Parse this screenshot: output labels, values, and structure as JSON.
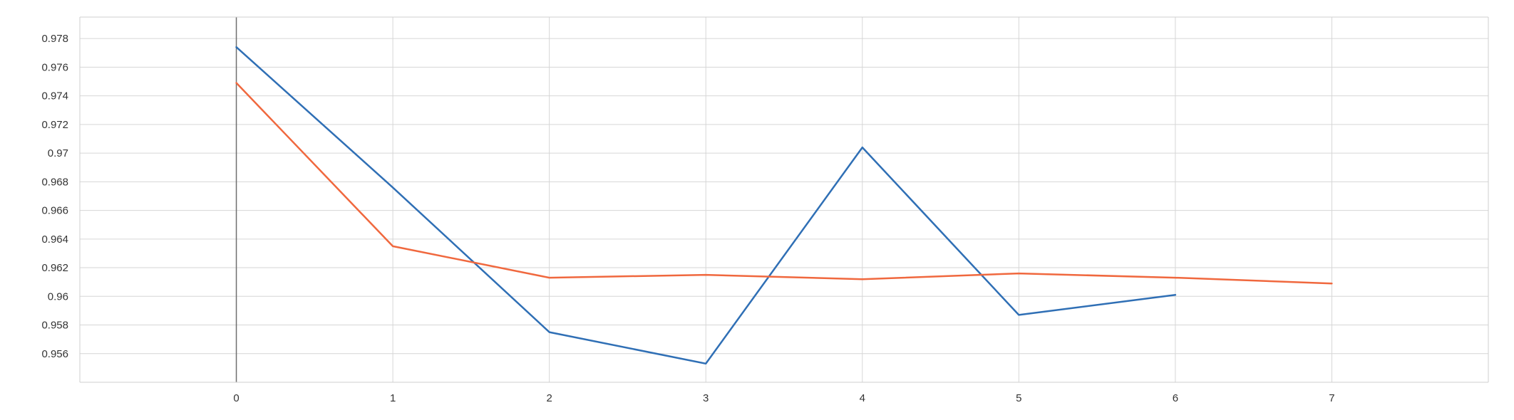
{
  "chart_data": {
    "type": "line",
    "title": "",
    "xlabel": "",
    "ylabel": "",
    "xlim": [
      -1,
      8
    ],
    "ylim": [
      0.954,
      0.9795
    ],
    "x_ticks": [
      "0",
      "1",
      "2",
      "3",
      "4",
      "5",
      "6",
      "7"
    ],
    "y_ticks": [
      "0.956",
      "0.958",
      "0.96",
      "0.962",
      "0.964",
      "0.966",
      "0.968",
      "0.97",
      "0.972",
      "0.974",
      "0.976",
      "0.978"
    ],
    "grid": true,
    "legend": "none",
    "series": [
      {
        "color": "#2f6fb5",
        "x": [
          0,
          1,
          2,
          3,
          4,
          5,
          6
        ],
        "values": [
          0.9774,
          0.9676,
          0.9575,
          0.9553,
          0.9704,
          0.9587,
          0.9601
        ]
      },
      {
        "color": "#f0683e",
        "x": [
          0,
          1,
          2,
          3,
          4,
          5,
          6,
          7
        ],
        "values": [
          0.9749,
          0.9635,
          0.9613,
          0.9615,
          0.9612,
          0.9616,
          0.9613,
          0.9609
        ]
      }
    ]
  }
}
